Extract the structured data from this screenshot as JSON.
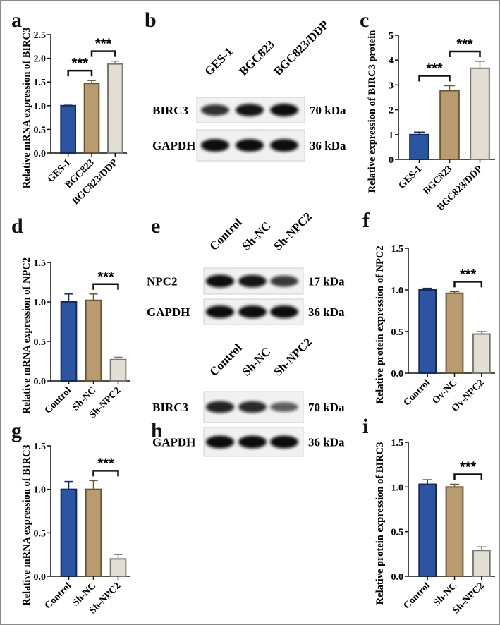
{
  "panels": {
    "a": "a",
    "b": "b",
    "c": "c",
    "d": "d",
    "e": "e",
    "f": "f",
    "g": "g",
    "h": "h",
    "i": "i"
  },
  "colors": {
    "bar1": "#2b55a3",
    "bar2": "#b89b6e",
    "bar3": "#e3ded4",
    "edge1": "#142a5c",
    "edge2": "#6a5530",
    "edge3": "#7a7a72"
  },
  "chart_data": [
    {
      "id": "a",
      "type": "bar",
      "ylabel": "Relative mRNA expression of  BIRC3",
      "categories": [
        "GES-1",
        "BGC823",
        "BGC823/DDP"
      ],
      "values": [
        1.0,
        1.47,
        1.88
      ],
      "errors": [
        0.01,
        0.06,
        0.06
      ],
      "ylim": [
        0,
        2.5
      ],
      "yticks": [
        "0.0",
        "0.5",
        "1.0",
        "1.5",
        "2.0",
        "2.5"
      ],
      "significance": [
        {
          "pair": [
            0,
            1
          ],
          "label": "***"
        },
        {
          "pair": [
            1,
            2
          ],
          "label": "***"
        }
      ]
    },
    {
      "id": "c",
      "type": "bar",
      "ylabel": "Relative expression of  BIRC3 protein",
      "categories": [
        "GES-1",
        "BGC823",
        "BGC823/DDP"
      ],
      "values": [
        1.0,
        2.77,
        3.67
      ],
      "errors": [
        0.1,
        0.2,
        0.28
      ],
      "ylim": [
        0,
        5
      ],
      "yticks": [
        "0",
        "1",
        "2",
        "3",
        "4",
        "5"
      ],
      "significance": [
        {
          "pair": [
            0,
            1
          ],
          "label": "***"
        },
        {
          "pair": [
            1,
            2
          ],
          "label": "***"
        }
      ]
    },
    {
      "id": "d",
      "type": "bar",
      "ylabel": "Relative mRNA expression of  NPC2",
      "categories": [
        "Control",
        "Sh-NC",
        "Sh-NPC2"
      ],
      "values": [
        1.0,
        1.02,
        0.27
      ],
      "errors": [
        0.1,
        0.08,
        0.03
      ],
      "ylim": [
        0,
        1.5
      ],
      "yticks": [
        "0.0",
        "0.5",
        "1.0",
        "1.5"
      ],
      "significance": [
        {
          "pair": [
            1,
            2
          ],
          "label": "***"
        }
      ]
    },
    {
      "id": "f",
      "type": "bar",
      "ylabel": "Relative protein expression of  NPC2",
      "categories": [
        "Control",
        "Ov-NC",
        "Ov-NPC2"
      ],
      "values": [
        1.0,
        0.96,
        0.47
      ],
      "errors": [
        0.02,
        0.02,
        0.03
      ],
      "ylim": [
        0,
        1.5
      ],
      "yticks": [
        "0.0",
        "0.5",
        "1.0",
        "1.5"
      ],
      "significance": [
        {
          "pair": [
            1,
            2
          ],
          "label": "***"
        }
      ]
    },
    {
      "id": "g",
      "type": "bar",
      "ylabel": "Relative mRNA expression of  BIRC3",
      "categories": [
        "Control",
        "Sh-NC",
        "Sh-NPC2"
      ],
      "values": [
        1.0,
        1.0,
        0.2
      ],
      "errors": [
        0.09,
        0.1,
        0.05
      ],
      "ylim": [
        0,
        1.5
      ],
      "yticks": [
        "0.0",
        "0.5",
        "1.0",
        "1.5"
      ],
      "significance": [
        {
          "pair": [
            1,
            2
          ],
          "label": "***"
        }
      ]
    },
    {
      "id": "i",
      "type": "bar",
      "ylabel": "Relative protein expression of  BIRC3",
      "categories": [
        "Control",
        "Sh-NC",
        "Sh-NPC2"
      ],
      "values": [
        1.03,
        1.0,
        0.29
      ],
      "errors": [
        0.05,
        0.03,
        0.04
      ],
      "ylim": [
        0,
        1.5
      ],
      "yticks": [
        "0.0",
        "0.5",
        "1.0",
        "1.5"
      ],
      "significance": [
        {
          "pair": [
            1,
            2
          ],
          "label": "***"
        }
      ]
    }
  ],
  "blots": [
    {
      "id": "b",
      "lanes": [
        "GES-1",
        "BGC823",
        "BGC823/DDP"
      ],
      "rows": [
        {
          "protein": "BIRC3",
          "size": "70 kDa",
          "band_intensity": [
            0.75,
            0.95,
            1.0
          ]
        },
        {
          "protein": "GAPDH",
          "size": "36 kDa",
          "band_intensity": [
            1.0,
            1.0,
            1.0
          ]
        }
      ]
    },
    {
      "id": "e",
      "lanes": [
        "Control",
        "Sh-NC",
        "Sh-NPC2"
      ],
      "rows": [
        {
          "protein": "NPC2",
          "size": "17 kDa",
          "band_intensity": [
            1.0,
            0.95,
            0.7
          ]
        },
        {
          "protein": "GAPDH",
          "size": "36 kDa",
          "band_intensity": [
            1.0,
            1.0,
            1.0
          ]
        }
      ]
    },
    {
      "id": "h",
      "lanes": [
        "Control",
        "Sh-NC",
        "Sh-NPC2"
      ],
      "rows": [
        {
          "protein": "BIRC3",
          "size": "70 kDa",
          "band_intensity": [
            0.85,
            0.8,
            0.45
          ]
        },
        {
          "protein": "GAPDH",
          "size": "36 kDa",
          "band_intensity": [
            1.0,
            1.0,
            1.0
          ]
        }
      ]
    }
  ]
}
